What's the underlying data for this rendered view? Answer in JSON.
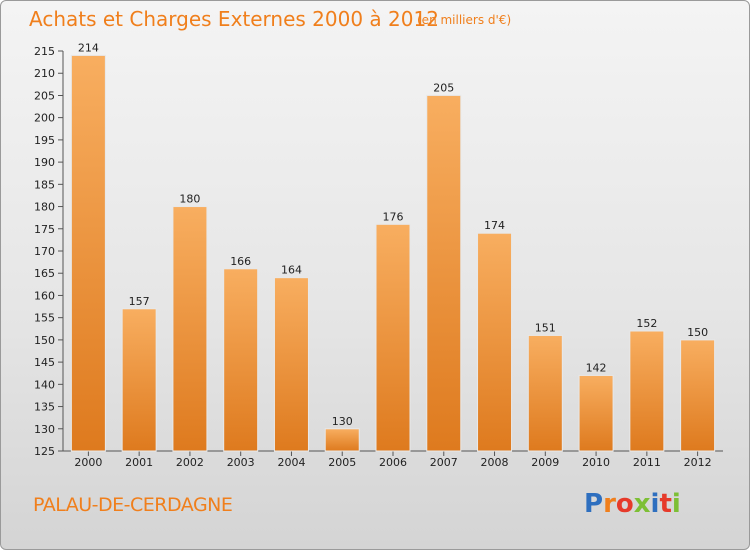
{
  "header": {
    "title": "Achats et Charges Externes 2000 à 2012",
    "subtitle": "(en milliers d'€)"
  },
  "footer": {
    "place": "PALAU-DE-CERDAGNE",
    "logo": "Proxiti",
    "logo_colors": [
      "#2e6fbf",
      "#f07f1c",
      "#e63a2a",
      "#7dbf35",
      "#2e6fbf",
      "#e63a2a",
      "#7dbf35"
    ]
  },
  "colors": {
    "bar_light": "#f5a552",
    "bar_dark": "#e07c1f",
    "text_accent": "#f07f1c"
  },
  "chart_data": {
    "type": "bar",
    "categories": [
      "2000",
      "2001",
      "2002",
      "2003",
      "2004",
      "2005",
      "2006",
      "2007",
      "2008",
      "2009",
      "2010",
      "2011",
      "2012"
    ],
    "values": [
      214,
      157,
      180,
      166,
      164,
      130,
      176,
      205,
      174,
      151,
      142,
      152,
      150
    ],
    "title": "Achats et Charges Externes 2000 à 2012",
    "ylim": [
      125,
      215
    ],
    "yticks": [
      125,
      130,
      135,
      140,
      145,
      150,
      155,
      160,
      165,
      170,
      175,
      180,
      185,
      190,
      195,
      200,
      205,
      210,
      215
    ],
    "grid": false,
    "data_labels": true
  }
}
